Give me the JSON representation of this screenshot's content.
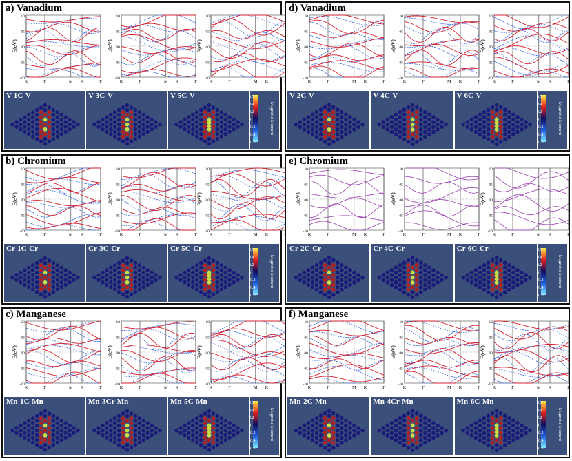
{
  "panels": [
    {
      "title": "a) Vanadium",
      "labels": [
        "V-1C-V",
        "V-3C-V",
        "V-5C-V"
      ],
      "style": "mixed",
      "ylabel": "E(eV)"
    },
    {
      "title": "d) Vanadium",
      "labels": [
        "V-2C-V",
        "V-4C-V",
        "V-6C-V"
      ],
      "style": "mixed",
      "ylabel": "E(eV)"
    },
    {
      "title": "b) Chromium",
      "labels": [
        "Cr-1C-Cr",
        "Cr-3C-Cr",
        "Cr-5C-Cr"
      ],
      "style": "mixed",
      "ylabel": "E(eV)"
    },
    {
      "title": "e) Chromium",
      "labels": [
        "Cr-2C-Cr",
        "Cr-4C-Cr",
        "Cr-6C-Cr"
      ],
      "style": "purple",
      "ylabel": "E(eV)"
    },
    {
      "title": "c) Manganese",
      "labels": [
        "Mn-1C-Mn",
        "Mn-3Cr-Mn",
        "Mn-5C-Mn"
      ],
      "style": "mixed",
      "ylabel": "E(eV)"
    },
    {
      "title": "f) Manganese",
      "labels": [
        "Mn-2C-Mn",
        "Mn-4Cr-Mn",
        "Mn-6C-Mn"
      ],
      "style": "mixed",
      "ylabel": "E(eV)"
    }
  ],
  "kpoints": [
    "K",
    "Γ",
    "M",
    "K",
    "Γ"
  ],
  "yticks": [
    "10",
    "05",
    "00",
    "-05",
    "-10"
  ],
  "colorbar": {
    "ticks": [
      "0.5",
      "0.4",
      "0.2",
      "0",
      "-0.2",
      "-0.4",
      "-0.5"
    ],
    "label": "Magnetic Moment"
  },
  "colors": {
    "spin_up": "#d42030",
    "spin_down": "#3060e0",
    "purple": "#9a3fb0",
    "strip": "#3a4f7a"
  }
}
